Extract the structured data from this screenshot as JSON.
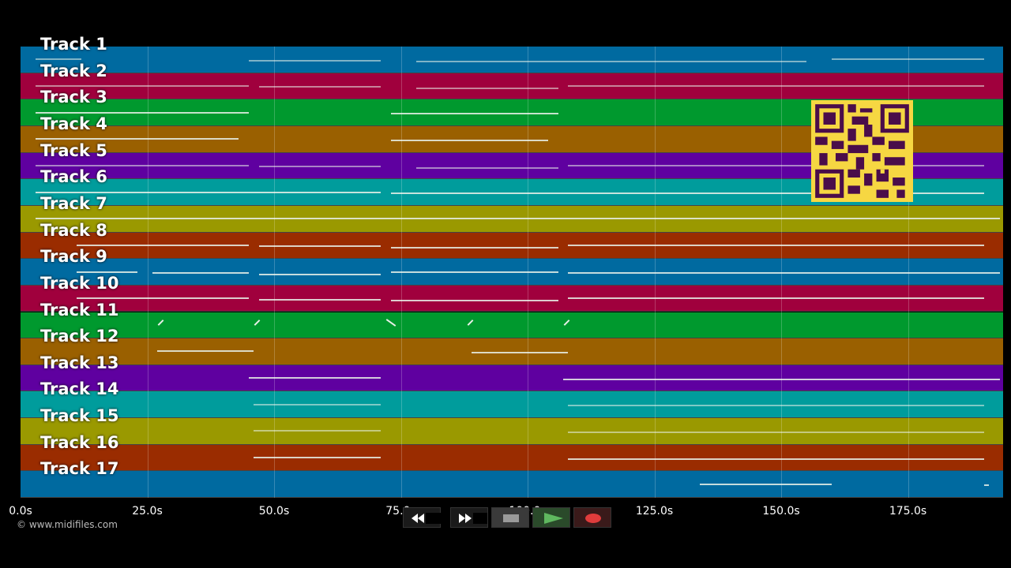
{
  "tracks": [
    {
      "label": "Track 1",
      "color": "#006aa0"
    },
    {
      "label": "Track 2",
      "color": "#a0003d"
    },
    {
      "label": "Track 3",
      "color": "#00992e"
    },
    {
      "label": "Track 4",
      "color": "#9a6000"
    },
    {
      "label": "Track 5",
      "color": "#5f00a0"
    },
    {
      "label": "Track 6",
      "color": "#009c9c"
    },
    {
      "label": "Track 7",
      "color": "#9a9900"
    },
    {
      "label": "Track 8",
      "color": "#9a2c00"
    },
    {
      "label": "Track 9",
      "color": "#006aa0"
    },
    {
      "label": "Track 10",
      "color": "#a0003d"
    },
    {
      "label": "Track 11",
      "color": "#00992e"
    },
    {
      "label": "Track 12",
      "color": "#9a6000"
    },
    {
      "label": "Track 13",
      "color": "#5f00a0"
    },
    {
      "label": "Track 14",
      "color": "#009c9c"
    },
    {
      "label": "Track 15",
      "color": "#9a9900"
    },
    {
      "label": "Track 16",
      "color": "#9a2c00"
    },
    {
      "label": "Track 17",
      "color": "#006aa0"
    }
  ],
  "time_axis": {
    "unit": "s",
    "max_seconds": 194,
    "ticks": [
      "0.0s",
      "25.0s",
      "50.0s",
      "75.0s",
      "100.0s",
      "125.0s",
      "150.0s",
      "175.0s"
    ],
    "tick_values": [
      0,
      25,
      50,
      75,
      100,
      125,
      150,
      175
    ]
  },
  "note_segments": [
    [
      [
        3,
        12
      ],
      [
        45,
        71
      ],
      [
        78,
        155
      ],
      [
        160,
        190
      ]
    ],
    [
      [
        3,
        45
      ],
      [
        47,
        71
      ],
      [
        78,
        106
      ],
      [
        108,
        190
      ]
    ],
    [
      [
        3,
        45
      ],
      [
        73,
        106
      ]
    ],
    [
      [
        3,
        43
      ],
      [
        73,
        104
      ]
    ],
    [
      [
        3,
        45
      ],
      [
        47,
        71
      ],
      [
        78,
        106
      ],
      [
        108,
        190
      ]
    ],
    [
      [
        3,
        71
      ],
      [
        73,
        190
      ]
    ],
    [
      [
        3,
        194
      ]
    ],
    [
      [
        11,
        45
      ],
      [
        47,
        71
      ],
      [
        73,
        106
      ],
      [
        108,
        190
      ]
    ],
    [
      [
        11,
        23
      ],
      [
        26,
        45
      ],
      [
        47,
        71
      ],
      [
        73,
        106
      ],
      [
        108,
        194
      ]
    ],
    [
      [
        11,
        45
      ],
      [
        47,
        71
      ],
      [
        73,
        106
      ],
      [
        108,
        190
      ]
    ],
    [],
    [
      [
        27,
        46
      ],
      [
        89,
        108
      ]
    ],
    [
      [
        45,
        71
      ],
      [
        107,
        194
      ]
    ],
    [
      [
        46,
        71
      ],
      [
        108,
        190
      ]
    ],
    [
      [
        46,
        71
      ],
      [
        108,
        190
      ]
    ],
    [
      [
        46,
        71
      ],
      [
        108,
        190
      ]
    ],
    [
      [
        134,
        160
      ],
      [
        190,
        191
      ]
    ]
  ],
  "track11_marks": [
    27,
    46,
    72,
    88,
    107
  ],
  "copyright": "© www.midifiles.com",
  "transport": {
    "rewind": "rewind-icon",
    "fast_forward": "fast-forward-icon",
    "stop": "stop-icon",
    "play": "play-icon",
    "record": "record-icon"
  },
  "colors": {
    "play": "#5fb85f",
    "record": "#e03c3c",
    "qr": "#f6d742",
    "qr_dark": "#4a0d4a"
  }
}
